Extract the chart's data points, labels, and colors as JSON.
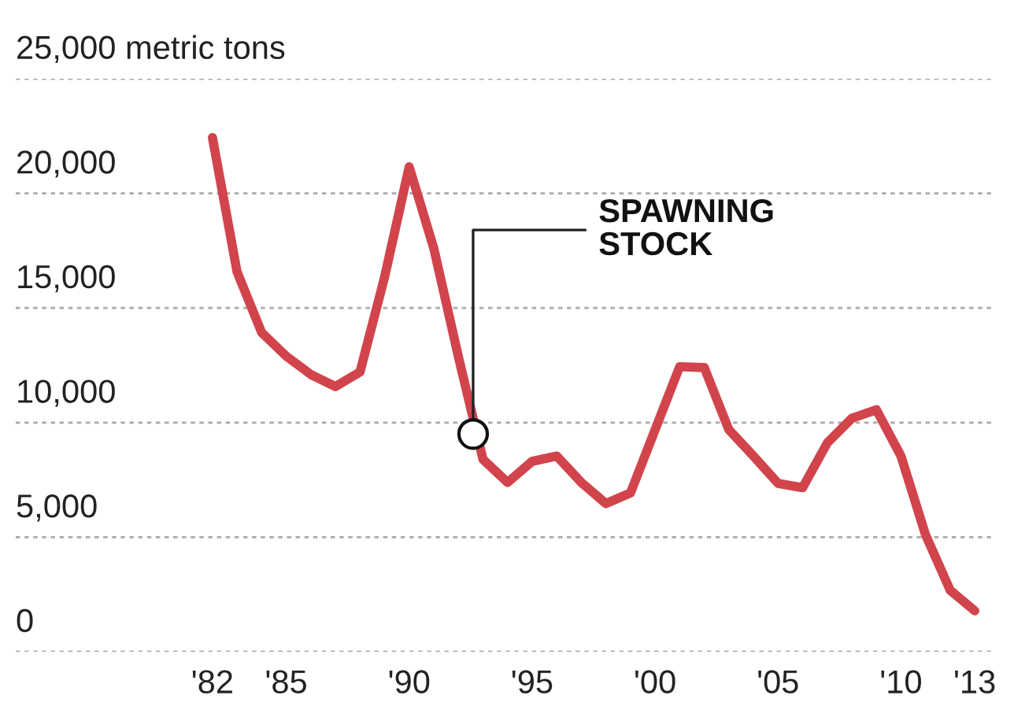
{
  "chart_data": {
    "type": "line",
    "x": [
      1982,
      1983,
      1984,
      1985,
      1986,
      1987,
      1988,
      1989,
      1990,
      1991,
      1992,
      1993,
      1994,
      1995,
      1996,
      1997,
      1998,
      1999,
      2000,
      2001,
      2002,
      2003,
      2004,
      2005,
      2006,
      2007,
      2008,
      2009,
      2010,
      2011,
      2012,
      2013
    ],
    "series": [
      {
        "color": "#d2444c",
        "values": [
          22430,
          16580,
          13930,
          12900,
          12100,
          11570,
          12210,
          16350,
          21160,
          17610,
          12880,
          8400,
          7390,
          8310,
          8540,
          7390,
          6470,
          6930,
          9690,
          12440,
          12400,
          9690,
          8540,
          7350,
          7160,
          9110,
          10190,
          10560,
          8540,
          5100,
          2690,
          1790
        ]
      }
    ],
    "xlim": [
      1974,
      2013.7
    ],
    "xticks": [
      {
        "value": 1982,
        "label": "'82"
      },
      {
        "value": 1985,
        "label": "'85"
      },
      {
        "value": 1990,
        "label": "'90"
      },
      {
        "value": 1995,
        "label": "'95"
      },
      {
        "value": 2000,
        "label": "'00"
      },
      {
        "value": 2005,
        "label": "'05"
      },
      {
        "value": 2010,
        "label": "'10"
      },
      {
        "value": 2013,
        "label": "'13"
      }
    ],
    "ylim": [
      0,
      25000
    ],
    "yticks": [
      0,
      {
        "value": 5000,
        "label": "5,000"
      },
      {
        "value": 10000,
        "label": "10,000"
      },
      {
        "value": 15000,
        "label": "15,000"
      },
      {
        "value": 20000,
        "label": "20,000"
      },
      {
        "value": 25000,
        "label": "25,000 metric tons"
      }
    ],
    "grid": "y",
    "annotations": [
      {
        "text": "SPAWNING\nSTOCK",
        "x": 1992.6,
        "y": 9500
      }
    ],
    "marker": "none",
    "line_style": "solid",
    "legend": false
  }
}
